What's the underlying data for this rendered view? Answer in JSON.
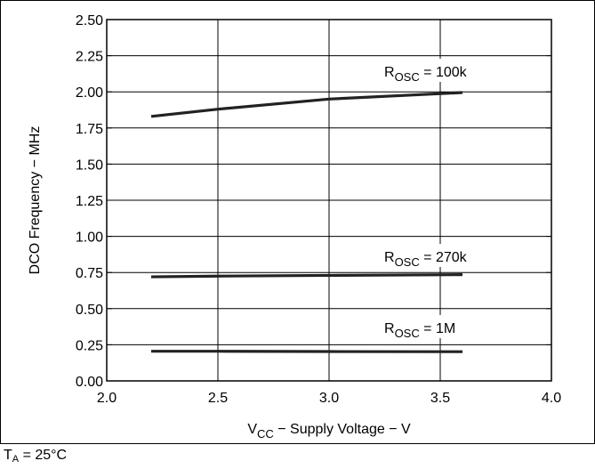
{
  "chart_data": {
    "type": "line",
    "x": [
      2.2,
      2.5,
      3.0,
      3.6
    ],
    "series": [
      {
        "name": "R_OSC = 100k",
        "values": [
          1.83,
          1.88,
          1.95,
          1.995
        ]
      },
      {
        "name": "R_OSC = 270k",
        "values": [
          0.72,
          0.725,
          0.73,
          0.735
        ]
      },
      {
        "name": "R_OSC = 1M",
        "values": [
          0.205,
          0.205,
          0.203,
          0.202
        ]
      }
    ],
    "xlabel": "V_CC − Supply Voltage − V",
    "ylabel": "DCO Frequency − MHz",
    "xlim": [
      2.0,
      4.0
    ],
    "ylim": [
      0.0,
      2.5
    ],
    "xticks": [
      "2.0",
      "2.5",
      "3.0",
      "3.5",
      "4.0"
    ],
    "yticks": [
      "0.00",
      "0.25",
      "0.50",
      "0.75",
      "1.00",
      "1.25",
      "1.50",
      "1.75",
      "2.00",
      "2.25",
      "2.50"
    ],
    "grid": true,
    "series_labels": [
      {
        "base": "R",
        "sub": "OSC",
        "rest": " = 100k"
      },
      {
        "base": "R",
        "sub": "OSC",
        "rest": " = 270k"
      },
      {
        "base": "R",
        "sub": "OSC",
        "rest": " = 1M"
      }
    ],
    "xlabel_parts": {
      "base": "V",
      "sub": "CC",
      "rest": " − Supply Voltage − V"
    }
  },
  "condition": {
    "base": "T",
    "sub": "A",
    "rest": " = 25°C"
  }
}
